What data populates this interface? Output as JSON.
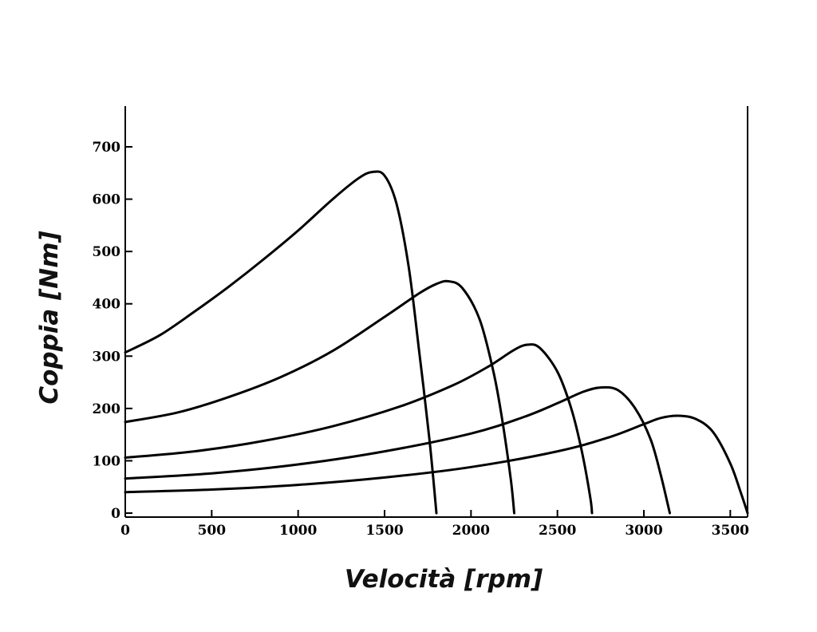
{
  "chart_data": {
    "type": "line",
    "title": "",
    "xlabel": "Velocità [rpm]",
    "ylabel": "Coppia [Nm]",
    "xlim": [
      0,
      3600
    ],
    "ylim": [
      0,
      770
    ],
    "xticks": [
      0,
      500,
      1000,
      1500,
      2000,
      2500,
      3000,
      3500
    ],
    "yticks": [
      0,
      100,
      200,
      300,
      400,
      500,
      600,
      700
    ],
    "xtick_labels": [
      "0",
      "500",
      "1000",
      "1500",
      "2000",
      "2500",
      "3000",
      "3500"
    ],
    "ytick_labels": [
      "0",
      "100",
      "200",
      "300",
      "400",
      "500",
      "600",
      "700"
    ],
    "grid": false,
    "legend": "none",
    "series": [
      {
        "x": [
          0,
          200,
          400,
          600,
          800,
          1000,
          1200,
          1350,
          1430,
          1500,
          1570,
          1640,
          1700,
          1760,
          1800
        ],
        "y": [
          307,
          340,
          385,
          433,
          485,
          540,
          600,
          640,
          652,
          645,
          590,
          470,
          310,
          140,
          0
        ]
      },
      {
        "x": [
          0,
          300,
          600,
          900,
          1200,
          1500,
          1700,
          1800,
          1870,
          1950,
          2050,
          2130,
          2180,
          2230,
          2250
        ],
        "y": [
          174,
          192,
          222,
          260,
          310,
          375,
          420,
          438,
          443,
          430,
          370,
          270,
          180,
          65,
          0
        ]
      },
      {
        "x": [
          0,
          400,
          800,
          1200,
          1600,
          1900,
          2100,
          2250,
          2330,
          2400,
          2500,
          2580,
          2640,
          2690,
          2700
        ],
        "y": [
          106,
          118,
          138,
          166,
          205,
          245,
          280,
          312,
          322,
          315,
          270,
          200,
          120,
          30,
          0
        ]
      },
      {
        "x": [
          0,
          500,
          1000,
          1500,
          2000,
          2300,
          2500,
          2650,
          2750,
          2850,
          2950,
          3040,
          3100,
          3150
        ],
        "y": [
          66,
          76,
          93,
          118,
          152,
          183,
          210,
          232,
          240,
          235,
          200,
          140,
          70,
          0
        ]
      },
      {
        "x": [
          0,
          500,
          1000,
          1500,
          2000,
          2500,
          2800,
          3000,
          3100,
          3200,
          3300,
          3400,
          3500,
          3560,
          3600
        ],
        "y": [
          40,
          45,
          54,
          68,
          88,
          118,
          145,
          170,
          182,
          186,
          180,
          155,
          95,
          40,
          0
        ]
      }
    ]
  }
}
